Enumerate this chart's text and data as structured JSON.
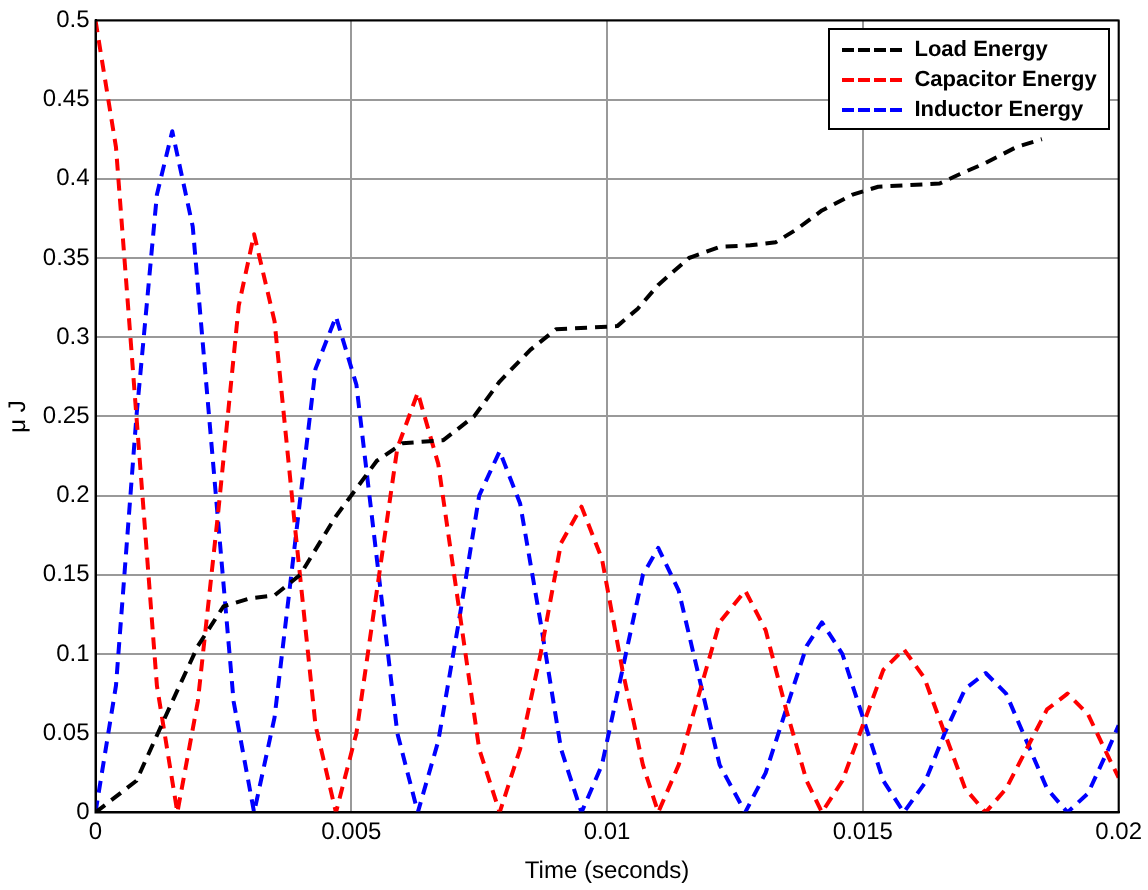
{
  "chart_data": {
    "type": "line",
    "xlabel": "Time (seconds)",
    "ylabel": "μ J",
    "xlim": [
      0,
      0.02
    ],
    "xticks": [
      0,
      0.005,
      0.01,
      0.015,
      0.02
    ],
    "ylim": [
      0,
      0.5
    ],
    "yticks": [
      0,
      0.05,
      0.1,
      0.15,
      0.2,
      0.25,
      0.3,
      0.35,
      0.4,
      0.45,
      0.5
    ],
    "grid": true,
    "legend": "top right",
    "marker": "none",
    "line_style": "dashed",
    "series": [
      {
        "name": "Load Energy",
        "color": "#000000",
        "x": [
          0,
          0.0008,
          0.0015,
          0.002,
          0.0025,
          0.003,
          0.0035,
          0.004,
          0.0047,
          0.0055,
          0.006,
          0.0068,
          0.0074,
          0.0079,
          0.0085,
          0.009,
          0.0096,
          0.0102,
          0.0106,
          0.011,
          0.0116,
          0.0122,
          0.0128,
          0.0133,
          0.0137,
          0.0142,
          0.0148,
          0.0153,
          0.0159,
          0.0165,
          0.0169,
          0.0174,
          0.018,
          0.0185
        ],
        "values": [
          0,
          0.02,
          0.07,
          0.105,
          0.13,
          0.135,
          0.137,
          0.15,
          0.187,
          0.222,
          0.233,
          0.235,
          0.25,
          0.272,
          0.292,
          0.305,
          0.306,
          0.307,
          0.318,
          0.333,
          0.35,
          0.357,
          0.358,
          0.36,
          0.368,
          0.38,
          0.39,
          0.395,
          0.396,
          0.397,
          0.403,
          0.41,
          0.42,
          0.425
        ]
      },
      {
        "name": "Capacitor Energy",
        "color": "#ff0000",
        "x": [
          0,
          0.0004,
          0.0008,
          0.0012,
          0.0016,
          0.002,
          0.0024,
          0.0028,
          0.0031,
          0.0035,
          0.0039,
          0.0043,
          0.0047,
          0.0051,
          0.0055,
          0.0059,
          0.0063,
          0.0067,
          0.0071,
          0.0075,
          0.0079,
          0.0083,
          0.0087,
          0.0091,
          0.0095,
          0.0099,
          0.0103,
          0.0107,
          0.011,
          0.0114,
          0.0118,
          0.0122,
          0.0127,
          0.0131,
          0.0135,
          0.0139,
          0.0142,
          0.0146,
          0.015,
          0.0154,
          0.0158,
          0.0162,
          0.0166,
          0.017,
          0.0174,
          0.0178,
          0.0182,
          0.0186,
          0.019,
          0.0194,
          0.0198,
          0.02
        ],
        "values": [
          0.5,
          0.42,
          0.25,
          0.08,
          0,
          0.07,
          0.19,
          0.32,
          0.365,
          0.31,
          0.18,
          0.055,
          0,
          0.05,
          0.14,
          0.23,
          0.265,
          0.22,
          0.13,
          0.04,
          0,
          0.04,
          0.1,
          0.17,
          0.193,
          0.16,
          0.09,
          0.03,
          0,
          0.03,
          0.075,
          0.12,
          0.14,
          0.115,
          0.065,
          0.02,
          0,
          0.02,
          0.055,
          0.09,
          0.103,
          0.085,
          0.05,
          0.015,
          0,
          0.015,
          0.04,
          0.065,
          0.075,
          0.062,
          0.035,
          0.022
        ]
      },
      {
        "name": "Inductor Energy",
        "color": "#0000ff",
        "x": [
          0,
          0.0004,
          0.0008,
          0.0012,
          0.0015,
          0.0019,
          0.0023,
          0.0027,
          0.0031,
          0.0035,
          0.0039,
          0.0043,
          0.0047,
          0.0051,
          0.0055,
          0.0059,
          0.0063,
          0.0067,
          0.0071,
          0.0075,
          0.0079,
          0.0083,
          0.0087,
          0.0091,
          0.0095,
          0.0099,
          0.0103,
          0.0107,
          0.011,
          0.0114,
          0.0118,
          0.0122,
          0.0127,
          0.0131,
          0.0135,
          0.0139,
          0.0142,
          0.0146,
          0.015,
          0.0154,
          0.0158,
          0.0162,
          0.0166,
          0.017,
          0.0174,
          0.0178,
          0.0182,
          0.0186,
          0.019,
          0.0194,
          0.0198,
          0.02
        ],
        "values": [
          0,
          0.08,
          0.25,
          0.39,
          0.43,
          0.37,
          0.22,
          0.07,
          0,
          0.06,
          0.17,
          0.28,
          0.313,
          0.27,
          0.16,
          0.05,
          0,
          0.045,
          0.12,
          0.2,
          0.228,
          0.195,
          0.12,
          0.04,
          0,
          0.03,
          0.09,
          0.15,
          0.167,
          0.14,
          0.085,
          0.03,
          0,
          0.025,
          0.065,
          0.105,
          0.12,
          0.1,
          0.06,
          0.02,
          0,
          0.018,
          0.05,
          0.078,
          0.088,
          0.075,
          0.045,
          0.015,
          0,
          0.012,
          0.04,
          0.055
        ]
      }
    ]
  }
}
